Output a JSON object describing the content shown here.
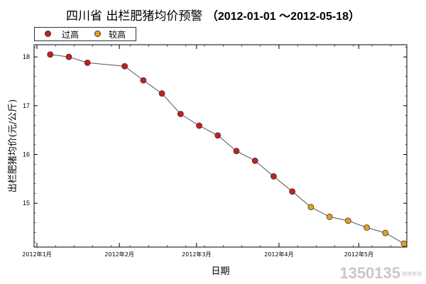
{
  "title": {
    "main": "四川省 出栏肥猪均价预警",
    "range": "（2012-01-01 ～2012-05-18）"
  },
  "legend": [
    {
      "label": "过高",
      "color": "#c81e1e"
    },
    {
      "label": "较高",
      "color": "#e8a020"
    }
  ],
  "watermark": {
    "text": "1350135",
    "sub": "猪猪养殖"
  },
  "chart_data": {
    "type": "scatter",
    "title": "四川省 出栏肥猪均价预警 （2012-01-01 ～2012-05-18）",
    "xlabel": "日期",
    "ylabel": "出栏肥猪均价(元/公斤)",
    "x_ticks": [
      "2012年1月",
      "2012年2月",
      "2012年3月",
      "2012年4月",
      "2012年5月"
    ],
    "y_ticks": [
      15,
      16,
      17,
      18
    ],
    "xlim": [
      "2012-01-01",
      "2012-05-18"
    ],
    "ylim": [
      14.1,
      18.25
    ],
    "grid": false,
    "legend_position": "top-left",
    "line_color": "#555555",
    "series": [
      {
        "name": "过高",
        "color": "#c81e1e",
        "points": [
          {
            "x": "2012-01-06",
            "y": 18.05
          },
          {
            "x": "2012-01-13",
            "y": 18.0
          },
          {
            "x": "2012-01-20",
            "y": 17.88
          },
          {
            "x": "2012-02-03",
            "y": 17.81
          },
          {
            "x": "2012-02-10",
            "y": 17.52
          },
          {
            "x": "2012-02-17",
            "y": 17.25
          },
          {
            "x": "2012-02-24",
            "y": 16.83
          },
          {
            "x": "2012-03-02",
            "y": 16.59
          },
          {
            "x": "2012-03-09",
            "y": 16.39
          },
          {
            "x": "2012-03-16",
            "y": 16.07
          },
          {
            "x": "2012-03-23",
            "y": 15.87
          },
          {
            "x": "2012-03-30",
            "y": 15.55
          },
          {
            "x": "2012-04-06",
            "y": 15.24
          }
        ]
      },
      {
        "name": "较高",
        "color": "#e8a020",
        "points": [
          {
            "x": "2012-04-13",
            "y": 14.92
          },
          {
            "x": "2012-04-20",
            "y": 14.72
          },
          {
            "x": "2012-04-27",
            "y": 14.64
          },
          {
            "x": "2012-05-04",
            "y": 14.5
          },
          {
            "x": "2012-05-11",
            "y": 14.39
          },
          {
            "x": "2012-05-18",
            "y": 14.17
          }
        ]
      }
    ]
  }
}
